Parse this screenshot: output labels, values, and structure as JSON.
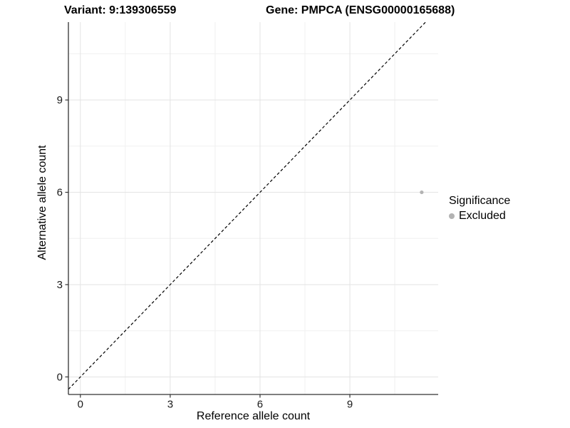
{
  "header": {
    "title_left": "Variant: 9:139306559",
    "title_right": "Gene: PMPCA (ENSG00000165688)"
  },
  "chart_data": {
    "type": "scatter",
    "title": "Variant: 9:139306559   Gene: PMPCA (ENSG00000165688)",
    "xlabel": "Reference allele count",
    "ylabel": "Alternative allele count",
    "x_ticks": [
      0,
      3,
      6,
      9
    ],
    "y_ticks": [
      0,
      3,
      6,
      9
    ],
    "x_minor": [
      1.5,
      4.5,
      7.5,
      10.5
    ],
    "y_minor": [
      1.5,
      4.5,
      7.5,
      10.5
    ],
    "xlim": [
      -0.4,
      11.95
    ],
    "ylim": [
      -0.57,
      11.53
    ],
    "grid": "major+minor",
    "points": [
      {
        "x": 11.4,
        "y": 6,
        "series": "Excluded"
      }
    ],
    "reference_line": {
      "kind": "identity",
      "slope": 1,
      "intercept": 0,
      "style": "dashed",
      "color": "#000000"
    },
    "legend": {
      "title": "Significance",
      "position": "right",
      "items": [
        {
          "label": "Excluded",
          "color": "#b3b3b3"
        }
      ]
    },
    "colors": {
      "point": "#b3b3b3",
      "grid_major": "#e3e3e3",
      "grid_minor": "#f0f0f0",
      "axis_line": "#333333",
      "tick_text": "#1a1a1a"
    }
  }
}
